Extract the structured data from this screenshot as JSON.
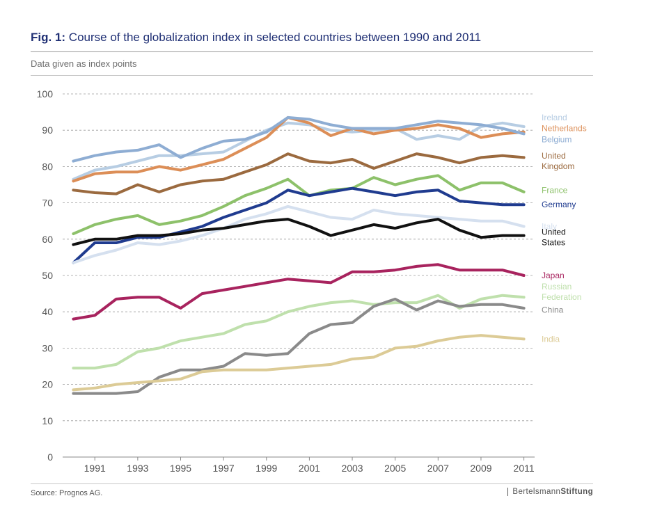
{
  "header": {
    "fig_label": "Fig. 1:",
    "title_text": "Course of the globalization index in selected countries between 1990 and 2011",
    "subtitle": "Data given as index points"
  },
  "footer": {
    "source": "Source: Prognos AG.",
    "logo_part1": "Bertelsmann",
    "logo_part2": "Stiftung"
  },
  "chart_data": {
    "type": "line",
    "title": "Course of the globalization index in selected countries between 1990 and 2011",
    "subtitle": "Data given as index points",
    "x": [
      1990,
      1991,
      1992,
      1993,
      1994,
      1995,
      1996,
      1997,
      1998,
      1999,
      2000,
      2001,
      2002,
      2003,
      2004,
      2005,
      2006,
      2007,
      2008,
      2009,
      2010,
      2011
    ],
    "x_tick_labels": [
      "1991",
      "1993",
      "1995",
      "1997",
      "1999",
      "2001",
      "2003",
      "2005",
      "2007",
      "2009",
      "2011"
    ],
    "x_ticks": [
      1991,
      1993,
      1995,
      1997,
      1999,
      2001,
      2003,
      2005,
      2007,
      2009,
      2011
    ],
    "y_ticks": [
      0,
      10,
      20,
      30,
      40,
      50,
      60,
      70,
      80,
      90,
      100
    ],
    "ylim": [
      0,
      100
    ],
    "xlim": [
      1989.5,
      2011.5
    ],
    "grid": "horizontal dashed",
    "legend": "right, labels at line ends",
    "series": [
      {
        "name": "Ireland",
        "label_lines": [
          "Ireland"
        ],
        "color": "#b7cde3",
        "label_y": 93.5,
        "values": [
          76.5,
          79,
          80,
          81.5,
          83,
          83,
          83.5,
          84,
          87,
          90,
          92,
          91.5,
          90,
          89.5,
          90,
          90.5,
          87.5,
          88.5,
          87.5,
          91,
          92,
          91
        ]
      },
      {
        "name": "Netherlands",
        "label_lines": [
          "Netherlands"
        ],
        "color": "#dc8e57",
        "label_y": 90.5,
        "values": [
          76,
          78,
          78.5,
          78.5,
          80,
          79,
          80.5,
          82,
          85,
          88,
          93.5,
          92,
          88.5,
          90.5,
          89,
          90,
          90.5,
          91.5,
          90.5,
          88,
          89,
          89.5
        ]
      },
      {
        "name": "Belgium",
        "label_lines": [
          "Belgium"
        ],
        "color": "#8eadd3",
        "label_y": 87.5,
        "values": [
          81.5,
          83,
          84,
          84.5,
          86,
          82.5,
          85,
          87,
          87.5,
          89.5,
          93.5,
          93,
          91.5,
          90.5,
          90.5,
          90.5,
          91.5,
          92.5,
          92,
          91.5,
          90.5,
          89
        ]
      },
      {
        "name": "United Kingdom",
        "label_lines": [
          "United",
          "Kingdom"
        ],
        "color": "#9b6a3f",
        "label_y": 81.5,
        "values": [
          73.5,
          72.8,
          72.5,
          75,
          73,
          75,
          76,
          76.5,
          78.5,
          80.5,
          83.5,
          81.5,
          81,
          82,
          79.5,
          81.5,
          83.5,
          82.5,
          81,
          82.5,
          83,
          82.5
        ]
      },
      {
        "name": "France",
        "label_lines": [
          "France"
        ],
        "color": "#8dc16a",
        "label_y": 73.5,
        "values": [
          61.5,
          64,
          65.5,
          66.5,
          64,
          65,
          66.5,
          69,
          72,
          74,
          76.5,
          72,
          73.5,
          74,
          77,
          75,
          76.5,
          77.5,
          73.5,
          75.5,
          75.5,
          73
        ]
      },
      {
        "name": "Germany",
        "label_lines": [
          "Germany"
        ],
        "color": "#1f3b8f",
        "label_y": 69.5,
        "values": [
          53.5,
          59,
          59,
          60.5,
          60.5,
          62,
          63.5,
          66,
          68,
          70,
          73.5,
          72,
          73,
          74,
          73,
          72,
          73,
          73.5,
          70.5,
          70,
          69.5,
          69.5
        ]
      },
      {
        "name": "Italy",
        "label_lines": [
          "Italy"
        ],
        "color": "#d5e0ef",
        "label_y": 63.5,
        "values": [
          53.5,
          55.5,
          57,
          59,
          58.5,
          59.5,
          61,
          63,
          65.5,
          67,
          69,
          67.5,
          66,
          65.5,
          68,
          67,
          66.5,
          66,
          65.5,
          65,
          65,
          63.5
        ]
      },
      {
        "name": "United States",
        "label_lines": [
          "United",
          "States"
        ],
        "color": "#111111",
        "label_y": 60.5,
        "values": [
          58.5,
          60,
          60,
          61,
          61,
          61.5,
          62.5,
          63,
          64,
          65,
          65.5,
          63.5,
          61,
          62.5,
          64,
          63,
          64.5,
          65.5,
          62.5,
          60.5,
          61,
          61
        ]
      },
      {
        "name": "Japan",
        "label_lines": [
          "Japan"
        ],
        "color": "#a8235e",
        "label_y": 50,
        "values": [
          38,
          39,
          43.5,
          44,
          44,
          41,
          45,
          46,
          47,
          48,
          49,
          48.5,
          48,
          51,
          51,
          51.5,
          52.5,
          53,
          51.5,
          51.5,
          51.5,
          50
        ]
      },
      {
        "name": "Russian Federation",
        "label_lines": [
          "Russian",
          "Federation"
        ],
        "color": "#bfe0ac",
        "label_y": 45.5,
        "values": [
          24.5,
          24.5,
          25.5,
          29,
          30,
          32,
          33,
          34,
          36.5,
          37.5,
          40,
          41.5,
          42.5,
          43,
          42,
          42.5,
          42.5,
          44.5,
          41,
          43.5,
          44.5,
          44
        ]
      },
      {
        "name": "China",
        "label_lines": [
          "China"
        ],
        "color": "#8a8a8a",
        "label_y": 40.5,
        "values": [
          17.5,
          17.5,
          17.5,
          18,
          22,
          24,
          24,
          25,
          28.5,
          28,
          28.5,
          34,
          36.5,
          37,
          41.5,
          43.5,
          40.5,
          43,
          41.5,
          42,
          42,
          41
        ]
      },
      {
        "name": "India",
        "label_lines": [
          "India"
        ],
        "color": "#dccb96",
        "label_y": 32.5,
        "values": [
          18.5,
          19,
          20,
          20.5,
          21,
          21.5,
          23.5,
          24,
          24,
          24,
          24.5,
          25,
          25.5,
          27,
          27.5,
          30,
          30.5,
          32,
          33,
          33.5,
          33,
          32.5
        ]
      }
    ]
  }
}
